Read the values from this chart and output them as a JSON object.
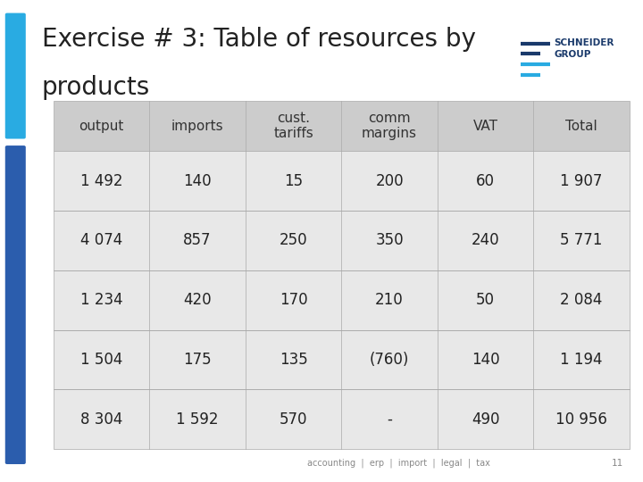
{
  "title_line1": "Exercise # 3: Table of resources by",
  "title_line2": "products",
  "title_fontsize": 20,
  "background_color": "#ffffff",
  "left_bar_color_top": "#29ABE2",
  "left_bar_color_bottom": "#2B5DAD",
  "header_bg": "#CCCCCC",
  "row_bg": "#E8E8E8",
  "col_headers": [
    "output",
    "imports",
    "cust.\ntariffs",
    "comm\nmargins",
    "VAT",
    "Total"
  ],
  "rows": [
    [
      "1 492",
      "140",
      "15",
      "200",
      "60",
      "1 907"
    ],
    [
      "4 074",
      "857",
      "250",
      "350",
      "240",
      "5 771"
    ],
    [
      "1 234",
      "420",
      "170",
      "210",
      "50",
      "2 084"
    ],
    [
      "1 504",
      "175",
      "135",
      "(760)",
      "140",
      "1 194"
    ],
    [
      "8 304",
      "1 592",
      "570",
      "-",
      "490",
      "10 956"
    ]
  ],
  "footer_text": "accounting  |  erp  |  import  |  legal  |  tax",
  "page_number": "11",
  "table_header_fontsize": 11,
  "table_data_fontsize": 12,
  "logo_lines_color": "#2B5DAD",
  "logo_text_color": "#2B5DAD"
}
